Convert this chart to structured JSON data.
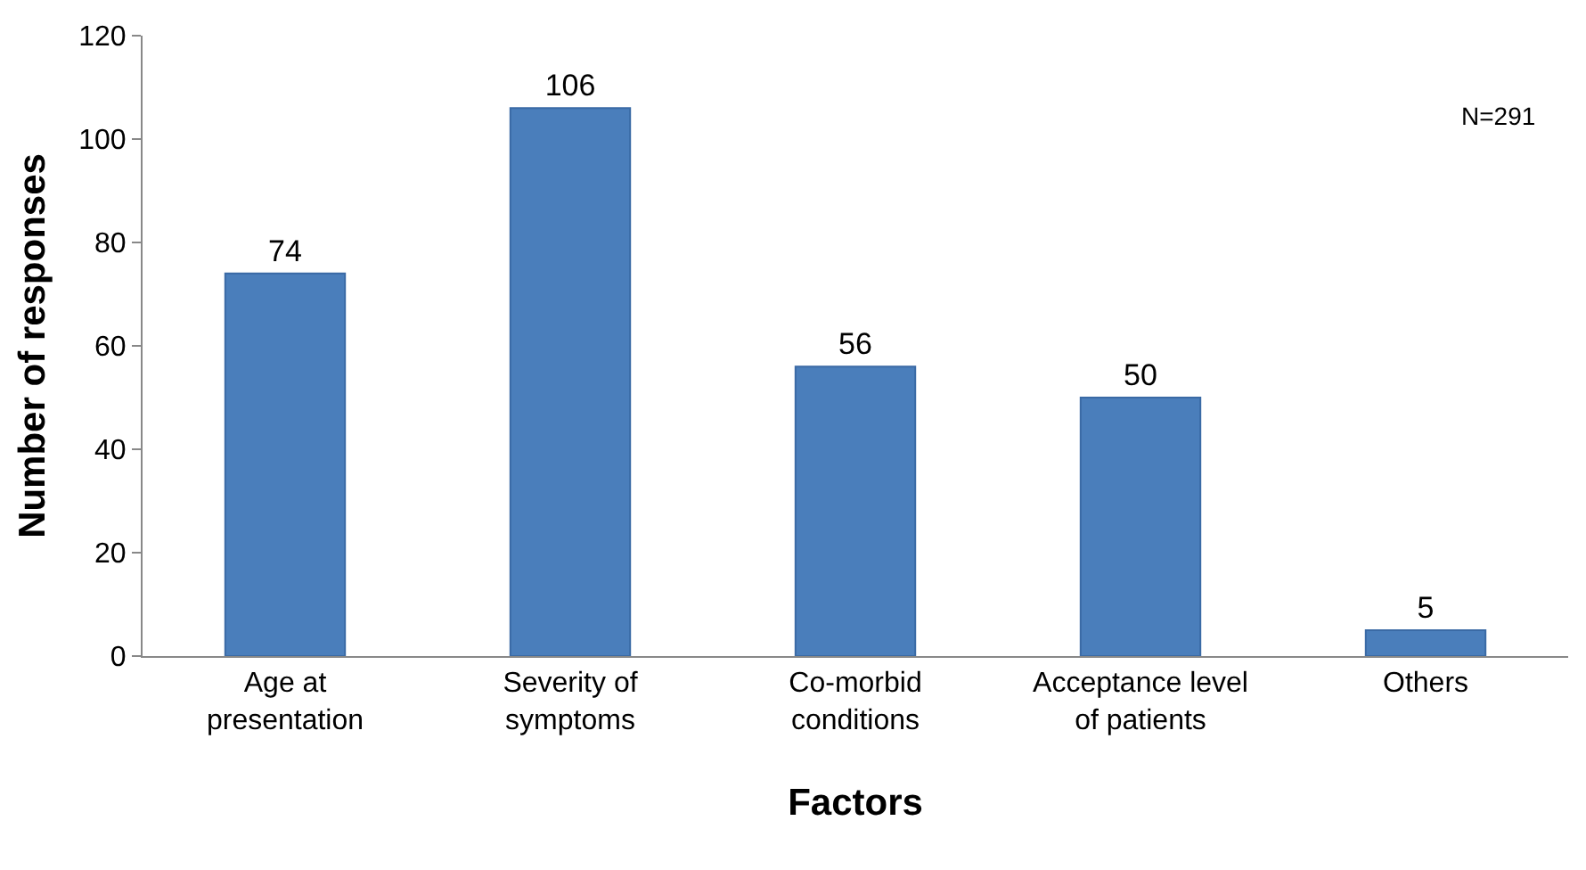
{
  "chart_data": {
    "type": "bar",
    "xlabel": "Factors",
    "ylabel": "Number of responses",
    "categories": [
      "Age at presentation",
      "Severity of symptoms",
      "Co-morbid conditions",
      "Acceptance level of patients",
      "Others"
    ],
    "values": [
      74,
      106,
      56,
      50,
      5
    ],
    "color": "#4a7ebb",
    "ylim": [
      0,
      120
    ],
    "yticks": [
      0,
      20,
      40,
      60,
      80,
      100,
      120
    ],
    "grid": false,
    "data_labels": true,
    "annotations": [
      "N=291"
    ]
  }
}
